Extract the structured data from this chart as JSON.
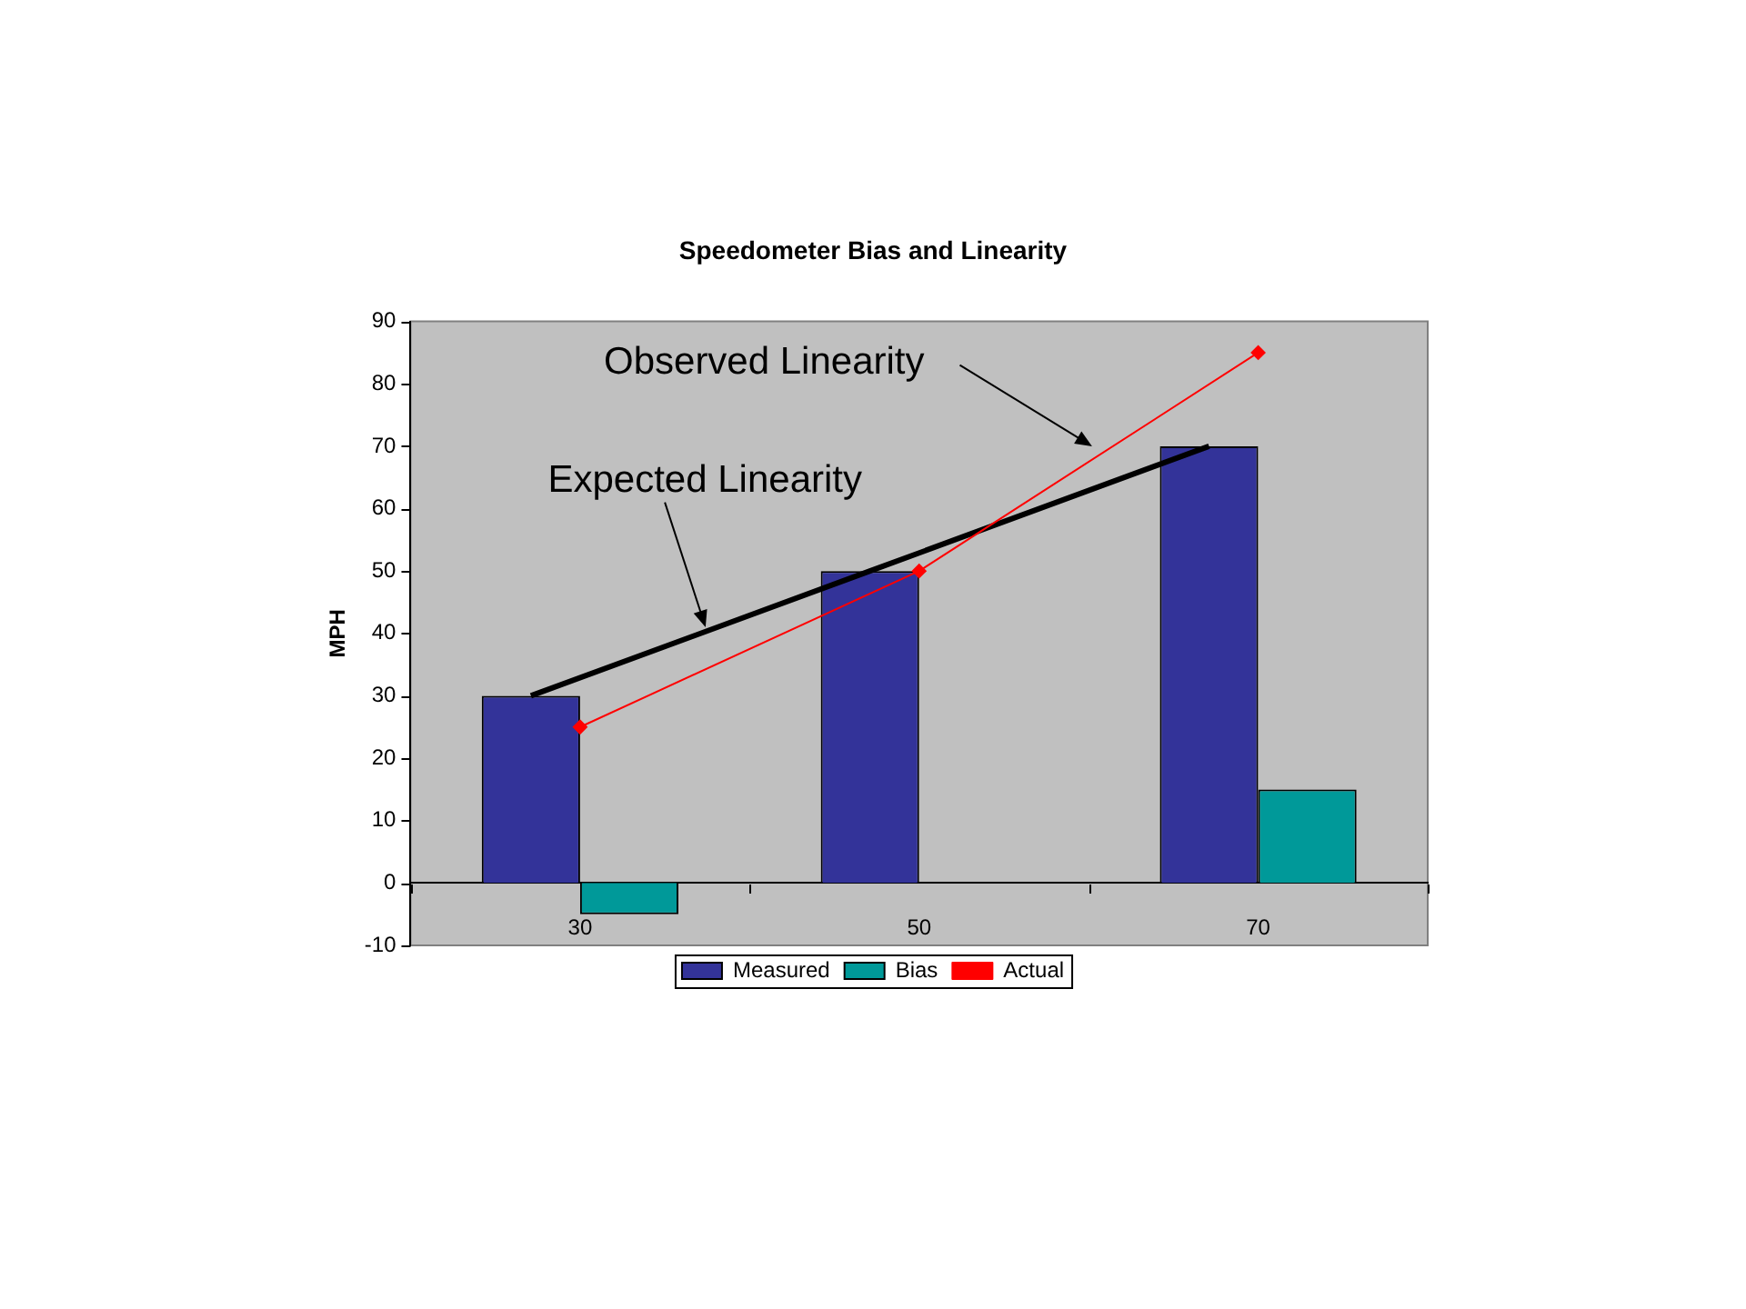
{
  "chart_data": {
    "type": "bar",
    "title": "Speedometer Bias and Linearity",
    "ylabel": "MPH",
    "categories": [
      "30",
      "50",
      "70"
    ],
    "series": [
      {
        "name": "Measured",
        "color": "#333399",
        "values": [
          30,
          50,
          70
        ]
      },
      {
        "name": "Bias",
        "color": "#009999",
        "values": [
          -5,
          0,
          15
        ]
      },
      {
        "name": "Actual",
        "type": "line",
        "color": "#ff0000",
        "marker": "diamond",
        "values": [
          25,
          50,
          85
        ]
      },
      {
        "type": "line",
        "color": "#000000",
        "marker": "none",
        "values": [
          30,
          50,
          70
        ]
      }
    ],
    "ylim": [
      -10,
      90
    ],
    "yticks": [
      -10,
      0,
      10,
      20,
      30,
      40,
      50,
      60,
      70,
      80,
      90
    ],
    "legend": "bottom",
    "annotations": [
      "Observed Linearity",
      {
        "text": "Expected Linearity",
        "y": 41
      }
    ]
  }
}
